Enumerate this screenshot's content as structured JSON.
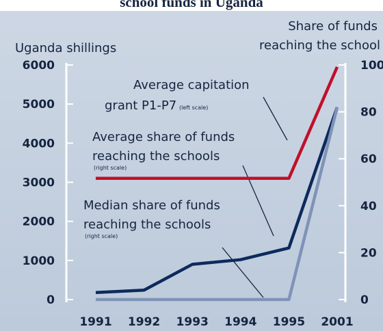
{
  "chart_data": {
    "type": "line",
    "title": "school funds in Uganda",
    "ylabel": "Uganda shillings",
    "y2label": [
      "Share of funds",
      "reaching the school"
    ],
    "categories": [
      "1991",
      "1992",
      "1993",
      "1994",
      "1995",
      "2001"
    ],
    "ylim": [
      0,
      6000
    ],
    "yticks": [
      0,
      1000,
      2000,
      3000,
      4000,
      5000,
      6000
    ],
    "y2lim": [
      0,
      100
    ],
    "y2ticks": [
      0,
      20,
      40,
      60,
      80,
      100
    ],
    "series": [
      {
        "color": "#c0102a",
        "values": [
          3100,
          3100,
          3100,
          3100,
          3100,
          5950
        ]
      },
      {
        "color": "#0d2a5c",
        "axis": "y2",
        "values": [
          3,
          4,
          15,
          17,
          22,
          82
        ]
      },
      {
        "color": "#7f93b8",
        "axis": "y2",
        "values": [
          0,
          0,
          0,
          0,
          0,
          82
        ]
      }
    ],
    "annotations": [
      {
        "lines": [
          "Average capitation",
          "grant P1-P7"
        ],
        "note": "(left scale)"
      },
      {
        "lines": [
          "Average share of funds",
          "reaching the schools"
        ],
        "note": "(right scale)"
      },
      {
        "lines": [
          "Median share of funds",
          "reaching the schools"
        ],
        "note": "(right scale)"
      }
    ]
  }
}
